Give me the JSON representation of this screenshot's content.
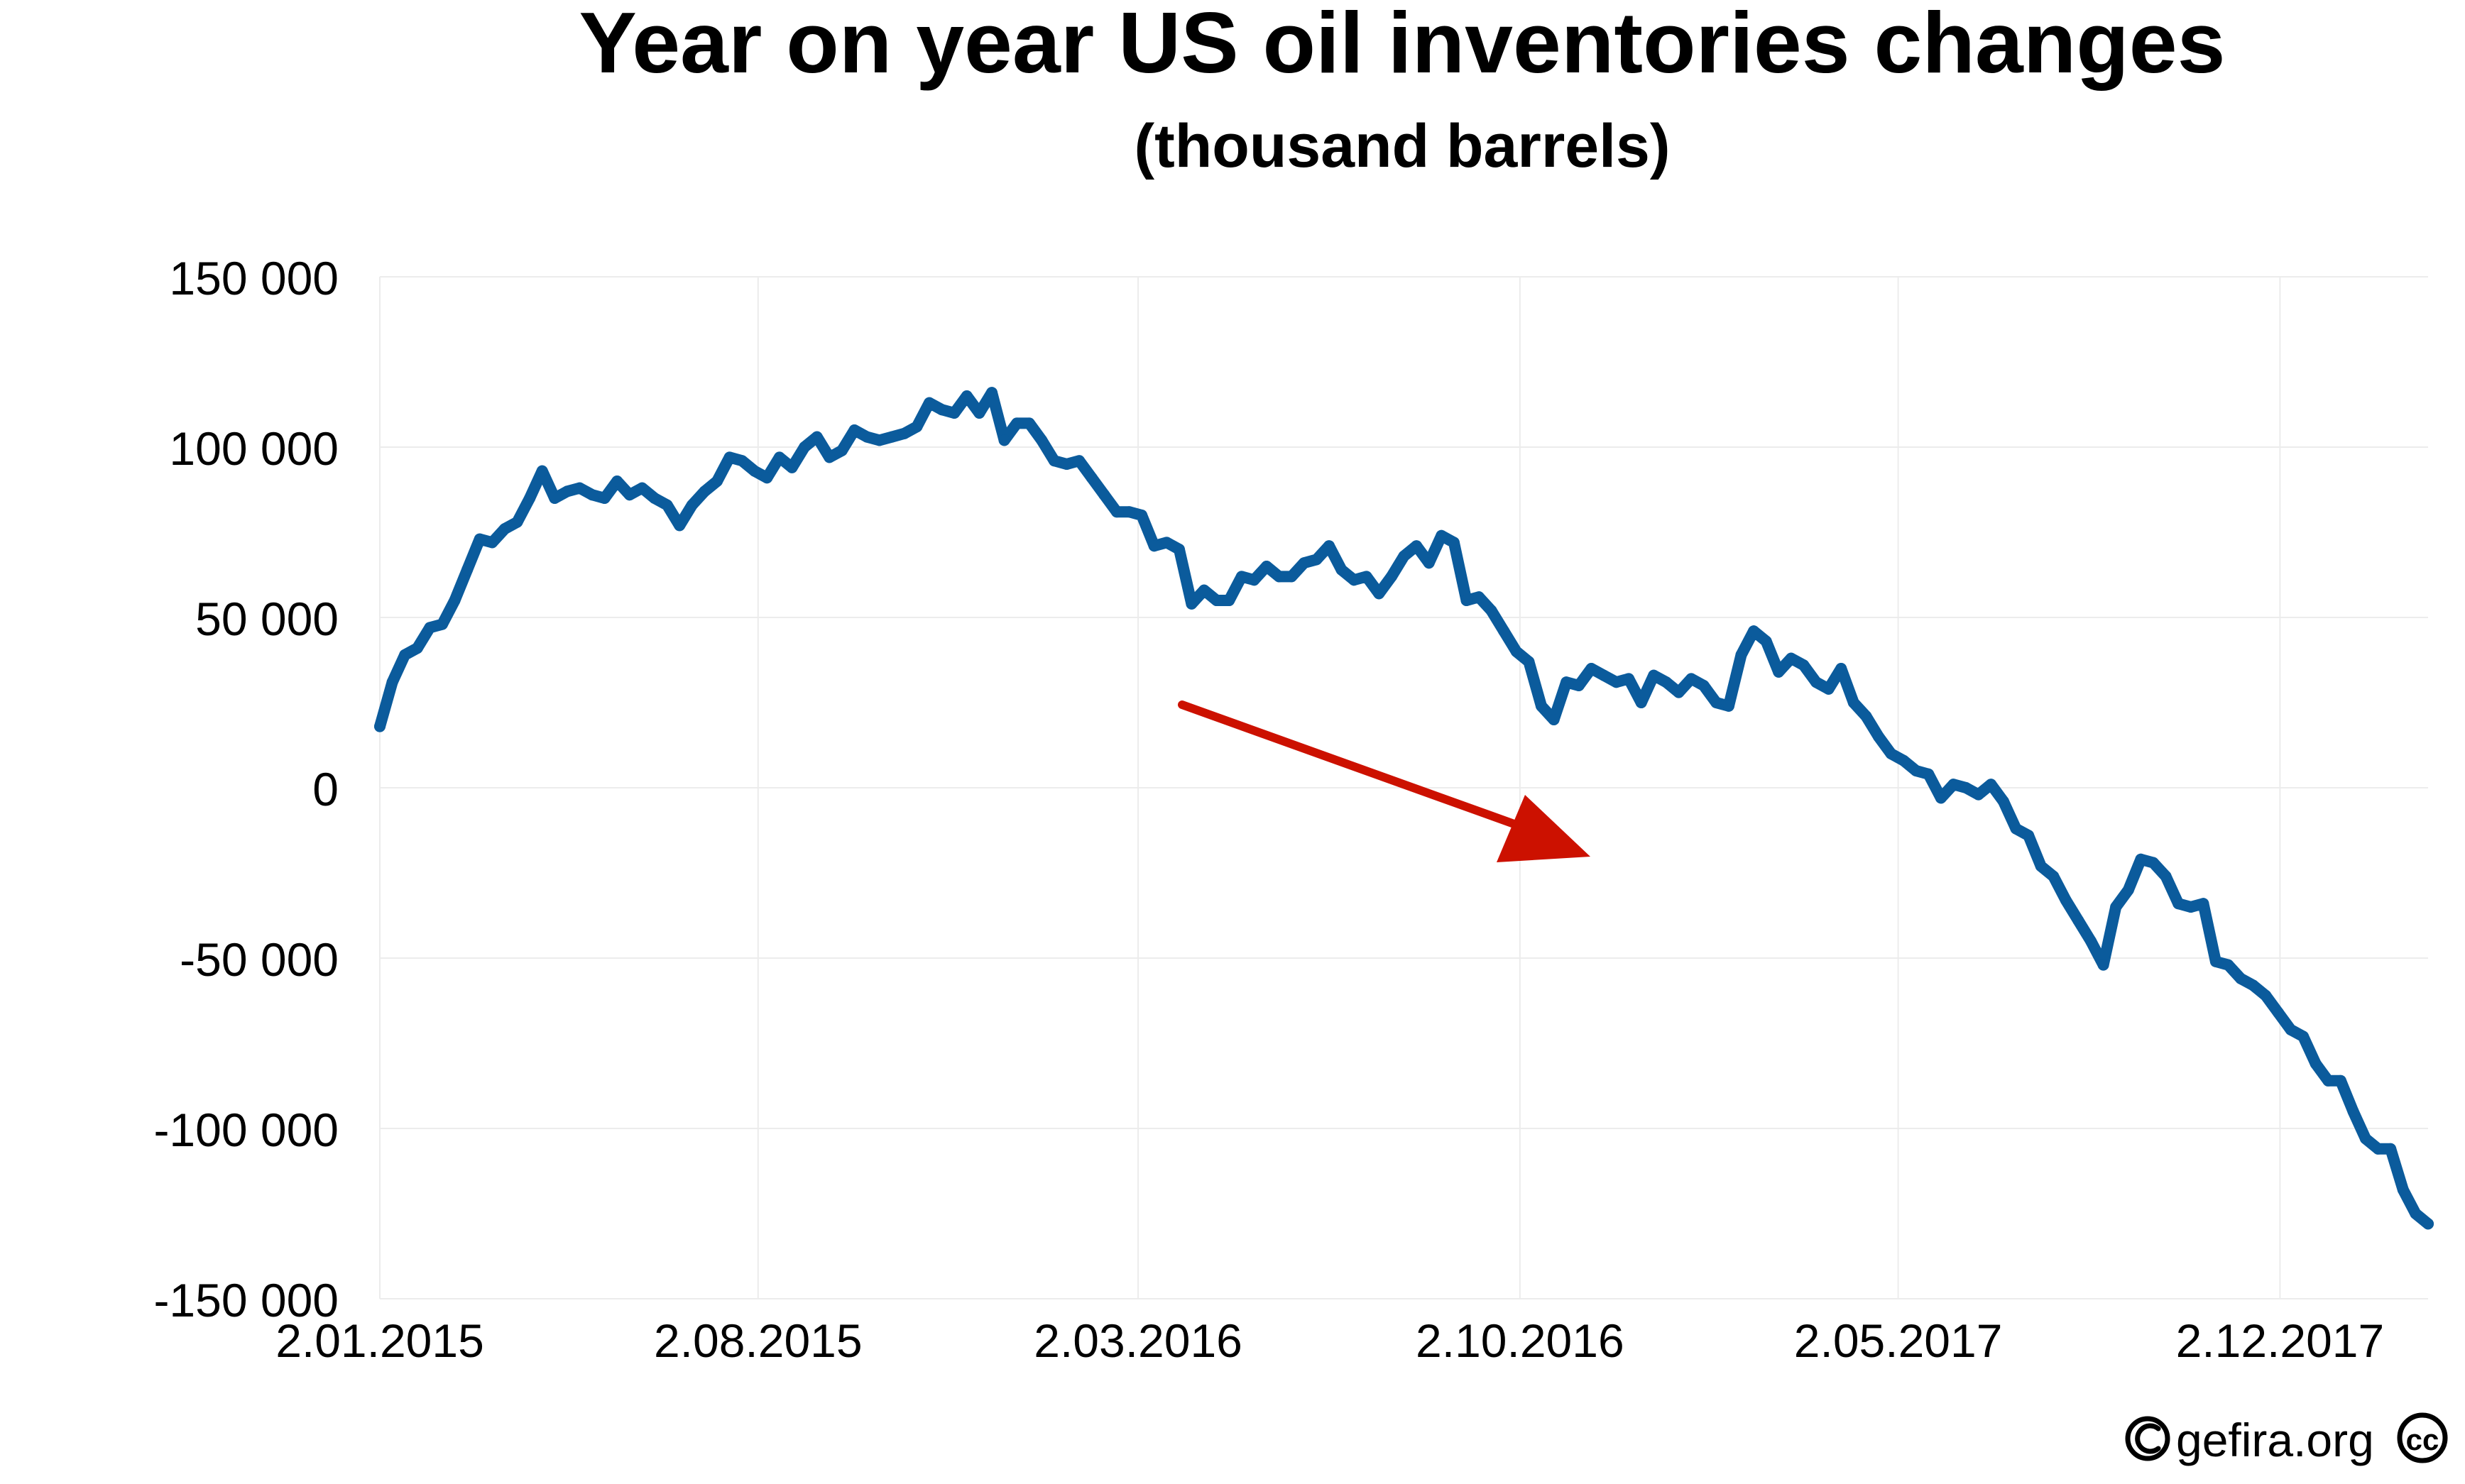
{
  "chart_data": {
    "type": "line",
    "title": "Year on year US oil inventories changes",
    "subtitle": "(thousand barrels)",
    "xlabel": "",
    "ylabel": "",
    "ylim": [
      -150000,
      150000
    ],
    "xlim": [
      "2015-01-02",
      "2018-02-23"
    ],
    "grid": true,
    "y_ticks": [
      150000,
      100000,
      50000,
      0,
      -50000,
      -100000,
      -150000
    ],
    "y_tick_labels": [
      "150 000",
      "100 000",
      "50 000",
      "0",
      "-50 000",
      "-100 000",
      "-150 000"
    ],
    "x_ticks": [
      "2015-01-02",
      "2015-08-02",
      "2016-03-02",
      "2016-10-02",
      "2017-05-02",
      "2017-12-02"
    ],
    "x_tick_labels": [
      "2.01.2015",
      "2.08.2015",
      "2.03.2016",
      "2.10.2016",
      "2.05.2017",
      "2.12.2017"
    ],
    "series": [
      {
        "name": "",
        "color": "#0b5b9c",
        "start_date": "2015-01-02",
        "interval_days": 7,
        "values": [
          18000,
          31000,
          39000,
          41000,
          47000,
          48000,
          55000,
          64000,
          73000,
          72000,
          76000,
          78000,
          85000,
          93000,
          85000,
          87000,
          88000,
          86000,
          85000,
          90000,
          86000,
          88000,
          85000,
          83000,
          77000,
          83000,
          87000,
          90000,
          97000,
          96000,
          93000,
          91000,
          97000,
          94000,
          100000,
          103000,
          97000,
          99000,
          105000,
          103000,
          102000,
          103000,
          104000,
          106000,
          113000,
          111000,
          110000,
          115000,
          110000,
          116000,
          102000,
          107000,
          107000,
          102000,
          96000,
          95000,
          96000,
          91000,
          86000,
          81000,
          81000,
          80000,
          71000,
          72000,
          70000,
          54000,
          58000,
          55000,
          55000,
          62000,
          61000,
          65000,
          62000,
          62000,
          66000,
          67000,
          71000,
          64000,
          61000,
          62000,
          57000,
          62000,
          68000,
          71000,
          66000,
          74000,
          72000,
          55000,
          56000,
          52000,
          46000,
          40000,
          37000,
          24000,
          20000,
          31000,
          30000,
          35000,
          33000,
          31000,
          32000,
          25000,
          33000,
          31000,
          28000,
          32000,
          30000,
          25000,
          24000,
          39000,
          46000,
          43000,
          34000,
          38000,
          36000,
          31000,
          29000,
          35000,
          25000,
          21000,
          15000,
          10000,
          8000,
          5000,
          4000,
          -3000,
          1000,
          0,
          -2000,
          1000,
          -4000,
          -12000,
          -14000,
          -23000,
          -26000,
          -33000,
          -39000,
          -45000,
          -52000,
          -35000,
          -30000,
          -21000,
          -22000,
          -26000,
          -34000,
          -35000,
          -34000,
          -51000,
          -52000,
          -56000,
          -58000,
          -61000,
          -66000,
          -71000,
          -73000,
          -81000,
          -86000,
          -86000,
          -95000,
          -103000,
          -106000,
          -106000,
          -118000,
          -125000,
          -128000
        ]
      }
    ],
    "annotations": [
      {
        "type": "arrow",
        "color": "#cc1100",
        "meaning": "downward trend"
      }
    ]
  },
  "credit": {
    "text": "gefira.org",
    "copyright_icon": "copyright-icon",
    "license_icon": "cc-license-icon",
    "license_glyph": "cc"
  }
}
